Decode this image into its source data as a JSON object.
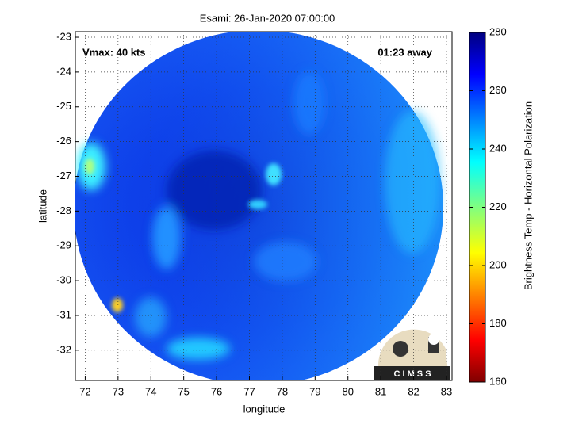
{
  "chart_data": {
    "type": "image",
    "title": "Esami: 26-Jan-2020 07:00:00",
    "xlabel": "longitude",
    "ylabel": "latitude",
    "xlim": [
      71.7,
      83.17
    ],
    "ylim": [
      -32.87,
      -22.84
    ],
    "xticks": [
      72,
      73,
      74,
      75,
      76,
      77,
      78,
      79,
      80,
      81,
      82,
      83
    ],
    "yticks": [
      -23,
      -24,
      -25,
      -26,
      -27,
      -28,
      -29,
      -30,
      -31,
      -32
    ],
    "grid": true,
    "annotations": [
      "Vmax: 40 kts",
      "01:23 away"
    ],
    "colorbar": {
      "label": "Brightness Temp - Horizontal Polarization",
      "lim": [
        160,
        280
      ],
      "ticks": [
        160,
        180,
        200,
        220,
        240,
        260,
        280
      ]
    }
  },
  "logo_text": "C I M S S"
}
